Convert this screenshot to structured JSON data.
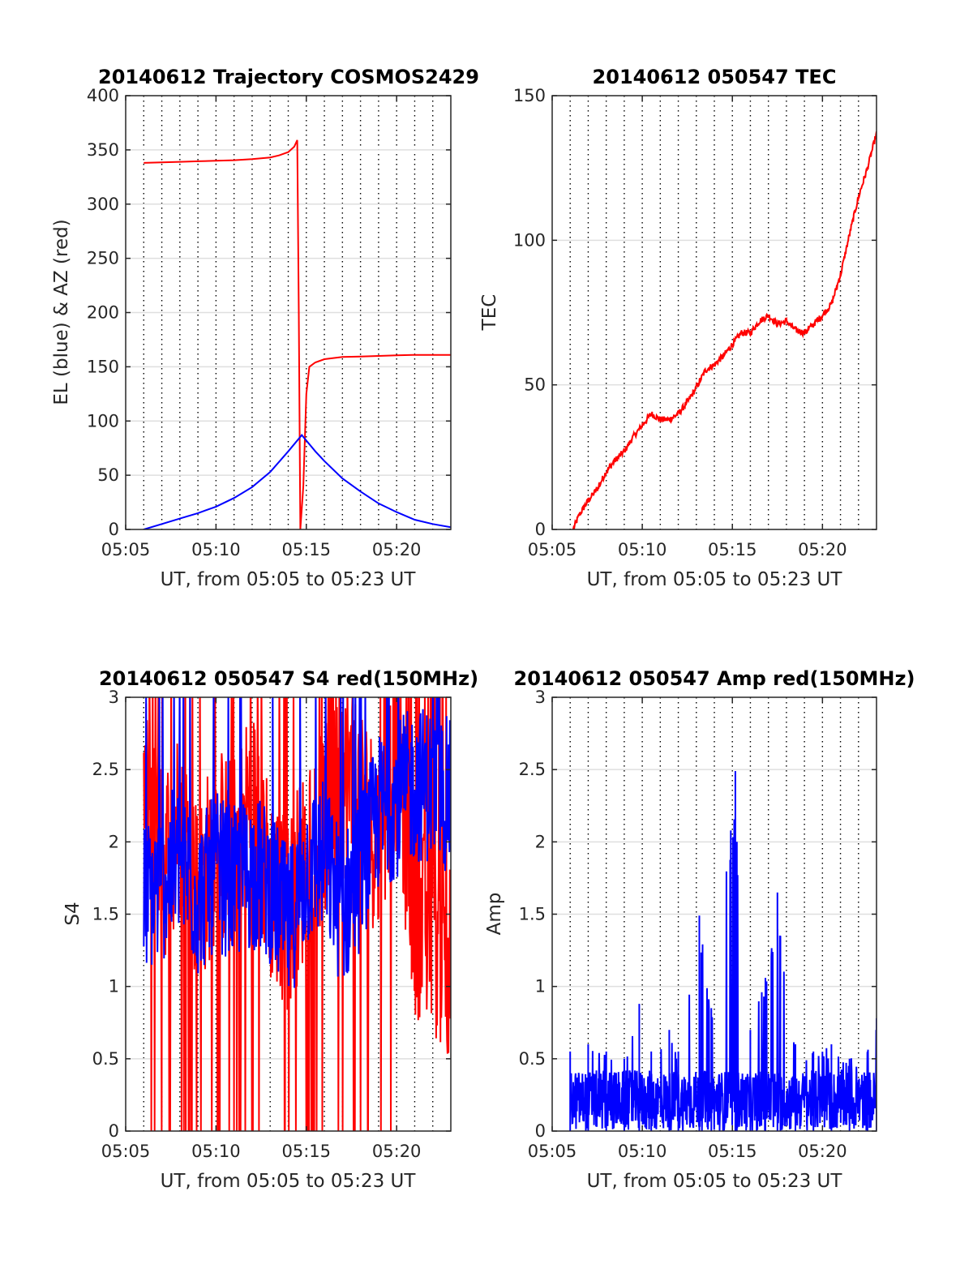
{
  "chart_data": [
    {
      "type": "line",
      "title": "20140612 Trajectory COSMOS2429",
      "xlabel": "UT, from 05:05 to 05:23 UT",
      "ylabel": "EL (blue) & AZ (red)",
      "xlim": [
        "05:05",
        "05:23"
      ],
      "ylim": [
        0,
        400
      ],
      "xticks": [
        "05:05",
        "05:10",
        "05:15",
        "05:20"
      ],
      "yticks": [
        "0",
        "50",
        "100",
        "150",
        "200",
        "250",
        "300",
        "350",
        "400"
      ],
      "grid": true,
      "series": [
        {
          "color": "#ff0000",
          "x": [
            "05:06:00",
            "05:07:00",
            "05:08:00",
            "05:09:00",
            "05:10:00",
            "05:11:00",
            "05:12:00",
            "05:13:00",
            "05:13:30",
            "05:14:00",
            "05:14:20",
            "05:14:30",
            "05:14:35",
            "05:14:40",
            "05:14:50",
            "05:15:00",
            "05:15:10",
            "05:15:30",
            "05:16:00",
            "05:17:00",
            "05:18:00",
            "05:19:00",
            "05:20:00",
            "05:21:00",
            "05:22:00",
            "05:23:00"
          ],
          "values": [
            338,
            338.5,
            339,
            339.5,
            340,
            340.5,
            341.5,
            343,
            345,
            348,
            353,
            359,
            200,
            0,
            40,
            125,
            150,
            154,
            157,
            159,
            159.5,
            160,
            160.5,
            161,
            161,
            161
          ]
        },
        {
          "color": "#0000ff",
          "x": [
            "05:06:00",
            "05:07:00",
            "05:08:00",
            "05:09:00",
            "05:10:00",
            "05:11:00",
            "05:12:00",
            "05:13:00",
            "05:14:00",
            "05:14:45",
            "05:15:30",
            "05:16:00",
            "05:17:00",
            "05:18:00",
            "05:19:00",
            "05:20:00",
            "05:21:00",
            "05:22:00",
            "05:23:00"
          ],
          "values": [
            0,
            5,
            10,
            15,
            21,
            29,
            39,
            53,
            72,
            87,
            72,
            63,
            47,
            35,
            24,
            16,
            9,
            5,
            2
          ]
        }
      ]
    },
    {
      "type": "line",
      "title": "20140612 050547 TEC",
      "xlabel": "UT, from 05:05 to 05:23 UT",
      "ylabel": "TEC",
      "xlim": [
        "05:05",
        "05:23"
      ],
      "ylim": [
        0,
        150
      ],
      "xticks": [
        "05:05",
        "05:10",
        "05:15",
        "05:20"
      ],
      "yticks": [
        "0",
        "50",
        "100",
        "150"
      ],
      "grid": true,
      "series": [
        {
          "color": "#ff0000",
          "x": [
            "05:06:10",
            "05:06:30",
            "05:07:00",
            "05:07:30",
            "05:08:00",
            "05:08:30",
            "05:09:00",
            "05:09:30",
            "05:10:00",
            "05:10:30",
            "05:11:00",
            "05:11:30",
            "05:12:00",
            "05:12:30",
            "05:13:00",
            "05:13:30",
            "05:14:00",
            "05:14:30",
            "05:15:00",
            "05:15:30",
            "05:16:00",
            "05:16:30",
            "05:17:00",
            "05:17:30",
            "05:18:00",
            "05:18:30",
            "05:19:00",
            "05:19:30",
            "05:20:00",
            "05:20:30",
            "05:21:00",
            "05:21:30",
            "05:22:00",
            "05:22:30",
            "05:23:00"
          ],
          "values": [
            0,
            5,
            10,
            14,
            20,
            24,
            27,
            32,
            36,
            40,
            38,
            38,
            40,
            44,
            49,
            55,
            57,
            60,
            64,
            68,
            68,
            72,
            74,
            71,
            72,
            69,
            68,
            71,
            74,
            78,
            88,
            102,
            115,
            125,
            137
          ]
        }
      ]
    },
    {
      "type": "line",
      "title": "20140612 050547 S4 red(150MHz)",
      "xlabel": "UT, from 05:05 to 05:23 UT",
      "ylabel": "S4",
      "xlim": [
        "05:05",
        "05:23"
      ],
      "ylim": [
        0,
        3
      ],
      "xticks": [
        "05:05",
        "05:10",
        "05:15",
        "05:20"
      ],
      "yticks": [
        "0",
        "0.5",
        "1",
        "1.5",
        "2",
        "2.5",
        "3"
      ],
      "grid": true,
      "series": [
        {
          "color": "#ff0000",
          "x": [
            "05:06",
            "05:07",
            "05:08",
            "05:09",
            "05:10",
            "05:11",
            "05:12",
            "05:13",
            "05:14",
            "05:15",
            "05:16",
            "05:17",
            "05:18",
            "05:19",
            "05:20",
            "05:21",
            "05:22",
            "05:23"
          ],
          "values": [
            2.4,
            1.8,
            2.2,
            1.6,
            2.0,
            1.9,
            2.3,
            1.7,
            1.5,
            1.9,
            2.1,
            2.4,
            2.3,
            2.0,
            2.6,
            1.5,
            1.3,
            1.2
          ]
        },
        {
          "color": "#0000ff",
          "x": [
            "05:06",
            "05:07",
            "05:08",
            "05:09",
            "05:10",
            "05:11",
            "05:12",
            "05:13",
            "05:14",
            "05:15",
            "05:16",
            "05:17",
            "05:18",
            "05:19",
            "05:20",
            "05:21",
            "05:22",
            "05:23"
          ],
          "values": [
            1.6,
            1.7,
            1.9,
            1.6,
            1.8,
            1.7,
            1.8,
            1.7,
            1.4,
            1.8,
            1.9,
            1.5,
            1.8,
            2.2,
            2.3,
            2.4,
            2.4,
            2.3
          ]
        }
      ]
    },
    {
      "type": "line",
      "title": "20140612 050547 Amp red(150MHz)",
      "xlabel": "UT, from 05:05 to 05:23 UT",
      "ylabel": "Amp",
      "xlim": [
        "05:05",
        "05:23"
      ],
      "ylim": [
        0,
        3
      ],
      "xticks": [
        "05:05",
        "05:10",
        "05:15",
        "05:20"
      ],
      "yticks": [
        "0",
        "0.5",
        "1",
        "1.5",
        "2",
        "2.5",
        "3"
      ],
      "grid": true,
      "series": [
        {
          "color": "#0000ff",
          "x": [
            "05:06:00",
            "05:07:00",
            "05:08:00",
            "05:09:00",
            "05:09:50",
            "05:10:30",
            "05:11:30",
            "05:12:00",
            "05:13:10",
            "05:13:50",
            "05:15:10",
            "05:15:15",
            "05:16:00",
            "05:16:50",
            "05:17:30",
            "05:17:40",
            "05:18:30",
            "05:19:30",
            "05:20:30",
            "05:21:30",
            "05:22:30",
            "05:23:00"
          ],
          "values": [
            0.55,
            0.6,
            0.55,
            0.5,
            0.88,
            0.55,
            0.7,
            0.55,
            1.49,
            0.85,
            2.49,
            2.0,
            0.7,
            1.06,
            1.65,
            1.35,
            0.6,
            0.55,
            0.6,
            0.5,
            0.55,
            0.78
          ]
        }
      ]
    }
  ]
}
